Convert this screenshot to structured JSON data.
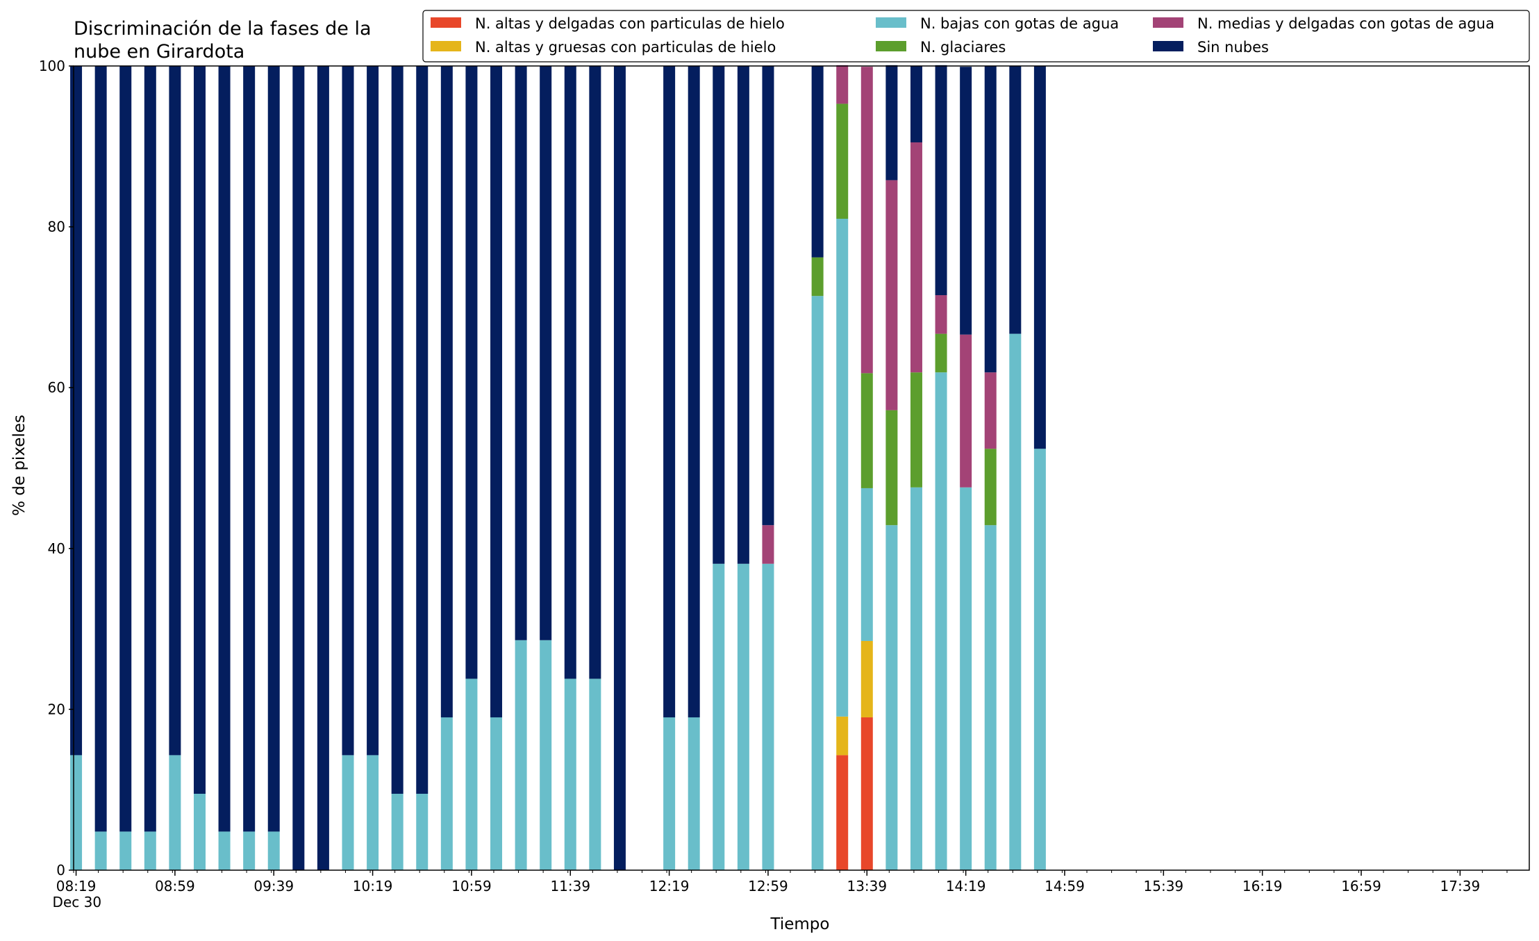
{
  "chart_data": {
    "type": "bar",
    "stacked": true,
    "title": "Discriminación de la fases de la\nnube en Girardota",
    "xlabel": "Tiempo",
    "ylabel": "% de pixeles",
    "ylim": [
      0,
      100
    ],
    "yticks": [
      0,
      20,
      40,
      60,
      80,
      100
    ],
    "grid": false,
    "legend_placement": "top-right",
    "xaxis": {
      "range_minutes": [
        498,
        1087
      ],
      "tick_labels": [
        "08:19\nDec 30",
        "08:59",
        "09:39",
        "10:19",
        "10:59",
        "11:39",
        "12:19",
        "12:59",
        "13:39",
        "14:19",
        "14:59",
        "15:39",
        "16:19",
        "16:59",
        "17:39"
      ],
      "tick_times": [
        "08:19",
        "08:59",
        "09:39",
        "10:19",
        "10:59",
        "11:39",
        "12:19",
        "12:59",
        "13:39",
        "14:19",
        "14:59",
        "15:39",
        "16:19",
        "16:59",
        "17:39"
      ],
      "minor_tick_step_minutes": 10
    },
    "x": [
      "08:19",
      "08:29",
      "08:39",
      "08:49",
      "08:59",
      "09:09",
      "09:19",
      "09:29",
      "09:39",
      "09:49",
      "09:59",
      "10:09",
      "10:19",
      "10:29",
      "10:39",
      "10:49",
      "10:59",
      "11:09",
      "11:19",
      "11:29",
      "11:39",
      "11:49",
      "11:59",
      "12:19",
      "12:29",
      "12:39",
      "12:49",
      "12:59",
      "13:19",
      "13:29",
      "13:39",
      "13:49",
      "13:59",
      "14:09",
      "14:19",
      "14:29",
      "14:39",
      "14:49"
    ],
    "series": [
      {
        "name": "N. altas y delgadas con particulas de hielo",
        "color": "#E8472A",
        "values": [
          0,
          0,
          0,
          0,
          0,
          0,
          0,
          0,
          0,
          0,
          0,
          0,
          0,
          0,
          0,
          0,
          0,
          0,
          0,
          0,
          0,
          0,
          0,
          0,
          0,
          0,
          0,
          0,
          0,
          14.3,
          19.0,
          0,
          0,
          0,
          0,
          0,
          0,
          0
        ]
      },
      {
        "name": "N. altas y gruesas con particulas de hielo",
        "color": "#E5B51A",
        "values": [
          0,
          0,
          0,
          0,
          0,
          0,
          0,
          0,
          0,
          0,
          0,
          0,
          0,
          0,
          0,
          0,
          0,
          0,
          0,
          0,
          0,
          0,
          0,
          0,
          0,
          0,
          0,
          0,
          0,
          4.8,
          9.5,
          0,
          0,
          0,
          0,
          0,
          0,
          0
        ]
      },
      {
        "name": "N. bajas con gotas de agua",
        "color": "#69BECA",
        "values": [
          14.3,
          4.8,
          4.8,
          4.8,
          14.3,
          9.5,
          4.8,
          4.8,
          4.8,
          0,
          0,
          14.3,
          14.3,
          9.5,
          9.5,
          19.0,
          23.8,
          19.0,
          28.6,
          28.6,
          23.8,
          23.8,
          0,
          19.0,
          19.0,
          38.1,
          38.1,
          38.1,
          71.4,
          61.9,
          19.0,
          42.9,
          47.6,
          61.9,
          47.6,
          42.9,
          66.7,
          52.4
        ]
      },
      {
        "name": "N. glaciares",
        "color": "#5C9E2D",
        "values": [
          0,
          0,
          0,
          0,
          0,
          0,
          0,
          0,
          0,
          0,
          0,
          0,
          0,
          0,
          0,
          0,
          0,
          0,
          0,
          0,
          0,
          0,
          0,
          0,
          0,
          0,
          0,
          0,
          4.8,
          14.3,
          14.3,
          14.3,
          14.3,
          4.8,
          0,
          9.5,
          0,
          0
        ]
      },
      {
        "name": "N. medias y delgadas con gotas de agua",
        "color": "#A34376",
        "values": [
          0,
          0,
          0,
          0,
          0,
          0,
          0,
          0,
          0,
          0,
          0,
          0,
          0,
          0,
          0,
          0,
          0,
          0,
          0,
          0,
          0,
          0,
          0,
          0,
          0,
          0,
          0,
          4.8,
          0,
          4.8,
          38.1,
          28.6,
          28.6,
          4.8,
          19.0,
          9.5,
          0,
          0
        ]
      },
      {
        "name": "Sin nubes",
        "color": "#041E5E",
        "values": [
          85.7,
          95.2,
          95.2,
          95.2,
          85.7,
          90.5,
          95.2,
          95.2,
          95.2,
          100,
          100,
          85.7,
          85.7,
          90.5,
          90.5,
          81.0,
          76.2,
          81.0,
          71.4,
          71.4,
          76.2,
          76.2,
          100,
          81.0,
          81.0,
          61.9,
          61.9,
          57.1,
          23.8,
          0,
          0,
          14.3,
          9.5,
          28.6,
          33.3,
          38.1,
          33.3,
          47.6
        ]
      }
    ]
  }
}
